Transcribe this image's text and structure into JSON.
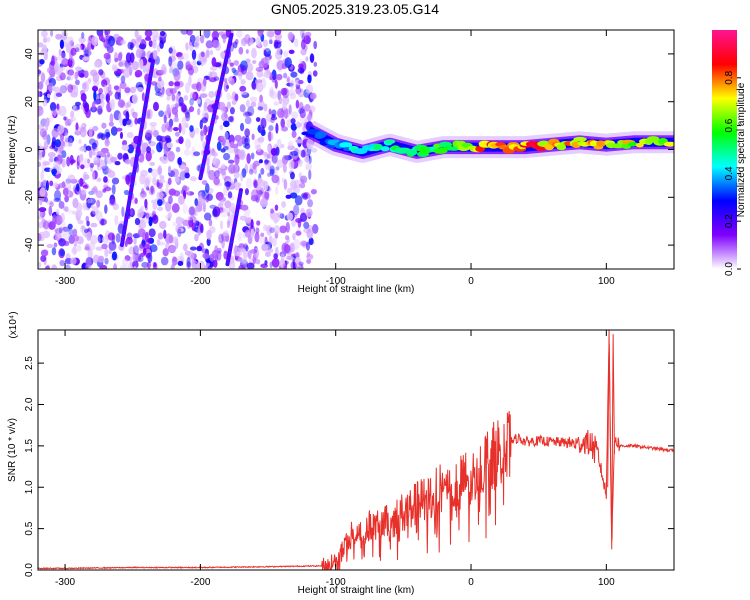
{
  "title": "GN05.2025.319.23.05.G14",
  "chart_data": [
    {
      "type": "heatmap",
      "xlabel": "Height of straight line (km)",
      "ylabel": "Frequency (Hz)",
      "xlim": [
        -320,
        150
      ],
      "ylim": [
        -50,
        50
      ],
      "xticks": [
        "-300",
        "-200",
        "-100",
        "0",
        "100"
      ],
      "yticks": [
        "-40",
        "-20",
        "0",
        "20",
        "40"
      ],
      "xtick_values": [
        -300,
        -200,
        -100,
        0,
        100
      ],
      "ytick_values": [
        -40,
        -20,
        0,
        20,
        40
      ],
      "colorbar": {
        "label": "Normalized spectral amplitude",
        "range": [
          0,
          1
        ],
        "ticks": [
          "0.0",
          "0.2",
          "0.4",
          "0.6",
          "0.8"
        ],
        "tick_values": [
          0,
          0.2,
          0.4,
          0.6,
          0.8
        ],
        "colormap": [
          "#ffffff",
          "#7f00ff",
          "#0000ff",
          "#00ffff",
          "#00ff00",
          "#ffff00",
          "#ff0000",
          "#ff1493"
        ]
      },
      "regions": {
        "noise_x_range": [
          -320,
          -115
        ],
        "noise_freq_range": [
          -50,
          50
        ],
        "streaks": [
          {
            "x_start": -258,
            "f_start": -40,
            "x_end": -235,
            "f_end": 37
          },
          {
            "x_start": -200,
            "f_start": -12,
            "x_end": -177,
            "f_end": 48
          },
          {
            "x_start": -180,
            "f_start": -48,
            "x_end": -170,
            "f_end": -17
          }
        ],
        "signal_band": [
          {
            "x": -120,
            "f": 8,
            "amp": 0.3
          },
          {
            "x": -100,
            "f": 2,
            "amp": 0.4
          },
          {
            "x": -80,
            "f": -1,
            "amp": 0.45
          },
          {
            "x": -60,
            "f": 2,
            "amp": 0.5
          },
          {
            "x": -40,
            "f": -1,
            "amp": 0.5
          },
          {
            "x": -20,
            "f": 1,
            "amp": 0.6
          },
          {
            "x": 0,
            "f": 1,
            "amp": 0.75
          },
          {
            "x": 20,
            "f": 1,
            "amp": 0.85
          },
          {
            "x": 40,
            "f": 1,
            "amp": 0.85
          },
          {
            "x": 60,
            "f": 2,
            "amp": 0.8
          },
          {
            "x": 80,
            "f": 3,
            "amp": 0.8
          },
          {
            "x": 100,
            "f": 2,
            "amp": 0.75
          },
          {
            "x": 120,
            "f": 3,
            "amp": 0.7
          },
          {
            "x": 150,
            "f": 3,
            "amp": 0.65
          }
        ]
      }
    },
    {
      "type": "line",
      "xlabel": "Height of straight line (km)",
      "ylabel": "SNR (10 * v/v)",
      "scale_label": "(x10⁴)",
      "xlim": [
        -320,
        150
      ],
      "ylim": [
        0,
        2.9
      ],
      "xticks": [
        "-300",
        "-200",
        "-100",
        "0",
        "100"
      ],
      "yticks": [
        "0.0",
        "0.5",
        "1.0",
        "1.5",
        "2.0",
        "2.5"
      ],
      "xtick_values": [
        -300,
        -200,
        -100,
        0,
        100
      ],
      "ytick_values": [
        0,
        0.5,
        1.0,
        1.5,
        2.0,
        2.5
      ],
      "series": [
        {
          "color": "#e8302a",
          "x": [
            -320,
            -300,
            -250,
            -200,
            -150,
            -110,
            -100,
            -95,
            -90,
            -85,
            -80,
            -75,
            -70,
            -65,
            -60,
            -55,
            -50,
            -45,
            -40,
            -35,
            -30,
            -25,
            -20,
            -15,
            -10,
            -5,
            0,
            5,
            10,
            15,
            20,
            25,
            30,
            35,
            40,
            50,
            60,
            70,
            80,
            85,
            90,
            95,
            100,
            102,
            104,
            106,
            110,
            120,
            130,
            140,
            150
          ],
          "y": [
            0.02,
            0.02,
            0.03,
            0.03,
            0.04,
            0.05,
            0.1,
            0.25,
            0.4,
            0.5,
            0.45,
            0.55,
            0.5,
            0.6,
            0.55,
            0.65,
            0.7,
            0.75,
            0.8,
            0.85,
            0.9,
            0.95,
            1.0,
            1.05,
            1.0,
            1.1,
            1.05,
            1.2,
            1.3,
            1.35,
            1.45,
            1.5,
            1.55,
            1.6,
            1.55,
            1.56,
            1.55,
            1.54,
            1.52,
            1.55,
            1.5,
            1.3,
            0.9,
            2.9,
            0.25,
            1.6,
            1.5,
            1.5,
            1.48,
            1.46,
            1.44
          ]
        }
      ]
    }
  ]
}
